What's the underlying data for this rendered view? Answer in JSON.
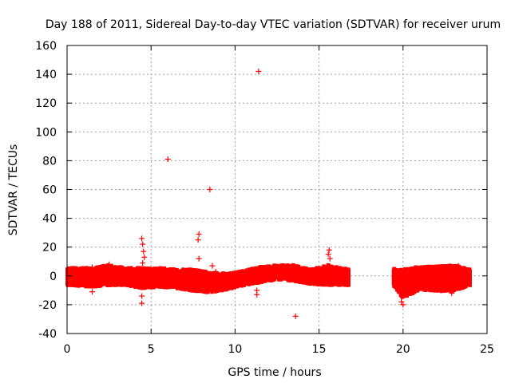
{
  "chart_data": {
    "type": "scatter",
    "title": "Day 188 of 2011, Sidereal Day-to-day VTEC variation (SDTVAR) for receiver urum",
    "xlabel": "GPS time / hours",
    "ylabel": "SDTVAR / TECUs",
    "xlim": [
      0,
      25
    ],
    "ylim": [
      -40,
      160
    ],
    "xticks": [
      0,
      5,
      10,
      15,
      20,
      25
    ],
    "yticks": [
      -40,
      -20,
      0,
      20,
      40,
      60,
      80,
      100,
      120,
      140,
      160
    ],
    "grid": true,
    "marker": "+",
    "series_color": "#ff0000",
    "dense_band": [
      {
        "x": 0.0,
        "low": -5,
        "high": 4
      },
      {
        "x": 1.5,
        "low": -6,
        "high": 4
      },
      {
        "x": 2.5,
        "low": -5,
        "high": 6
      },
      {
        "x": 3.5,
        "low": -5,
        "high": 4
      },
      {
        "x": 4.5,
        "low": -7,
        "high": 4
      },
      {
        "x": 5.5,
        "low": -6,
        "high": 4
      },
      {
        "x": 6.5,
        "low": -7,
        "high": 3
      },
      {
        "x": 7.5,
        "low": -9,
        "high": 3
      },
      {
        "x": 8.5,
        "low": -10,
        "high": 1
      },
      {
        "x": 9.5,
        "low": -8,
        "high": 0
      },
      {
        "x": 10.5,
        "low": -5,
        "high": 2
      },
      {
        "x": 11.5,
        "low": -3,
        "high": 5
      },
      {
        "x": 12.5,
        "low": -1,
        "high": 6
      },
      {
        "x": 13.5,
        "low": -2,
        "high": 6
      },
      {
        "x": 14.5,
        "low": -4,
        "high": 3
      },
      {
        "x": 15.5,
        "low": -5,
        "high": 6
      },
      {
        "x": 16.8,
        "low": -5,
        "high": 3
      },
      {
        "x": 19.4,
        "low": -5,
        "high": 4
      },
      {
        "x": 20.0,
        "low": -14,
        "high": 3
      },
      {
        "x": 21.0,
        "low": -8,
        "high": 5
      },
      {
        "x": 22.0,
        "low": -9,
        "high": 5
      },
      {
        "x": 23.0,
        "low": -9,
        "high": 6
      },
      {
        "x": 24.0,
        "low": -5,
        "high": 3
      }
    ],
    "gap_hours": [
      16.8,
      19.4
    ],
    "outliers": [
      {
        "x": 11.4,
        "y": 142
      },
      {
        "x": 6.0,
        "y": 81
      },
      {
        "x": 8.5,
        "y": 60
      },
      {
        "x": 7.85,
        "y": 29
      },
      {
        "x": 7.8,
        "y": 25
      },
      {
        "x": 7.85,
        "y": 12
      },
      {
        "x": 4.45,
        "y": 26
      },
      {
        "x": 4.5,
        "y": 22
      },
      {
        "x": 4.55,
        "y": 17
      },
      {
        "x": 4.6,
        "y": 13
      },
      {
        "x": 4.5,
        "y": 9
      },
      {
        "x": 4.45,
        "y": -14
      },
      {
        "x": 4.45,
        "y": -19
      },
      {
        "x": 8.65,
        "y": 7
      },
      {
        "x": 8.85,
        "y": 3
      },
      {
        "x": 13.6,
        "y": -28
      },
      {
        "x": 15.6,
        "y": 18
      },
      {
        "x": 15.55,
        "y": 15
      },
      {
        "x": 15.65,
        "y": 12
      },
      {
        "x": 11.3,
        "y": -10
      },
      {
        "x": 11.3,
        "y": -13
      },
      {
        "x": 1.5,
        "y": -11
      },
      {
        "x": 1.5,
        "y": 6
      },
      {
        "x": 20.0,
        "y": -20
      },
      {
        "x": 19.9,
        "y": -18
      },
      {
        "x": 23.3,
        "y": 7
      },
      {
        "x": 2.5,
        "y": 8
      },
      {
        "x": 22.9,
        "y": -12
      }
    ]
  }
}
